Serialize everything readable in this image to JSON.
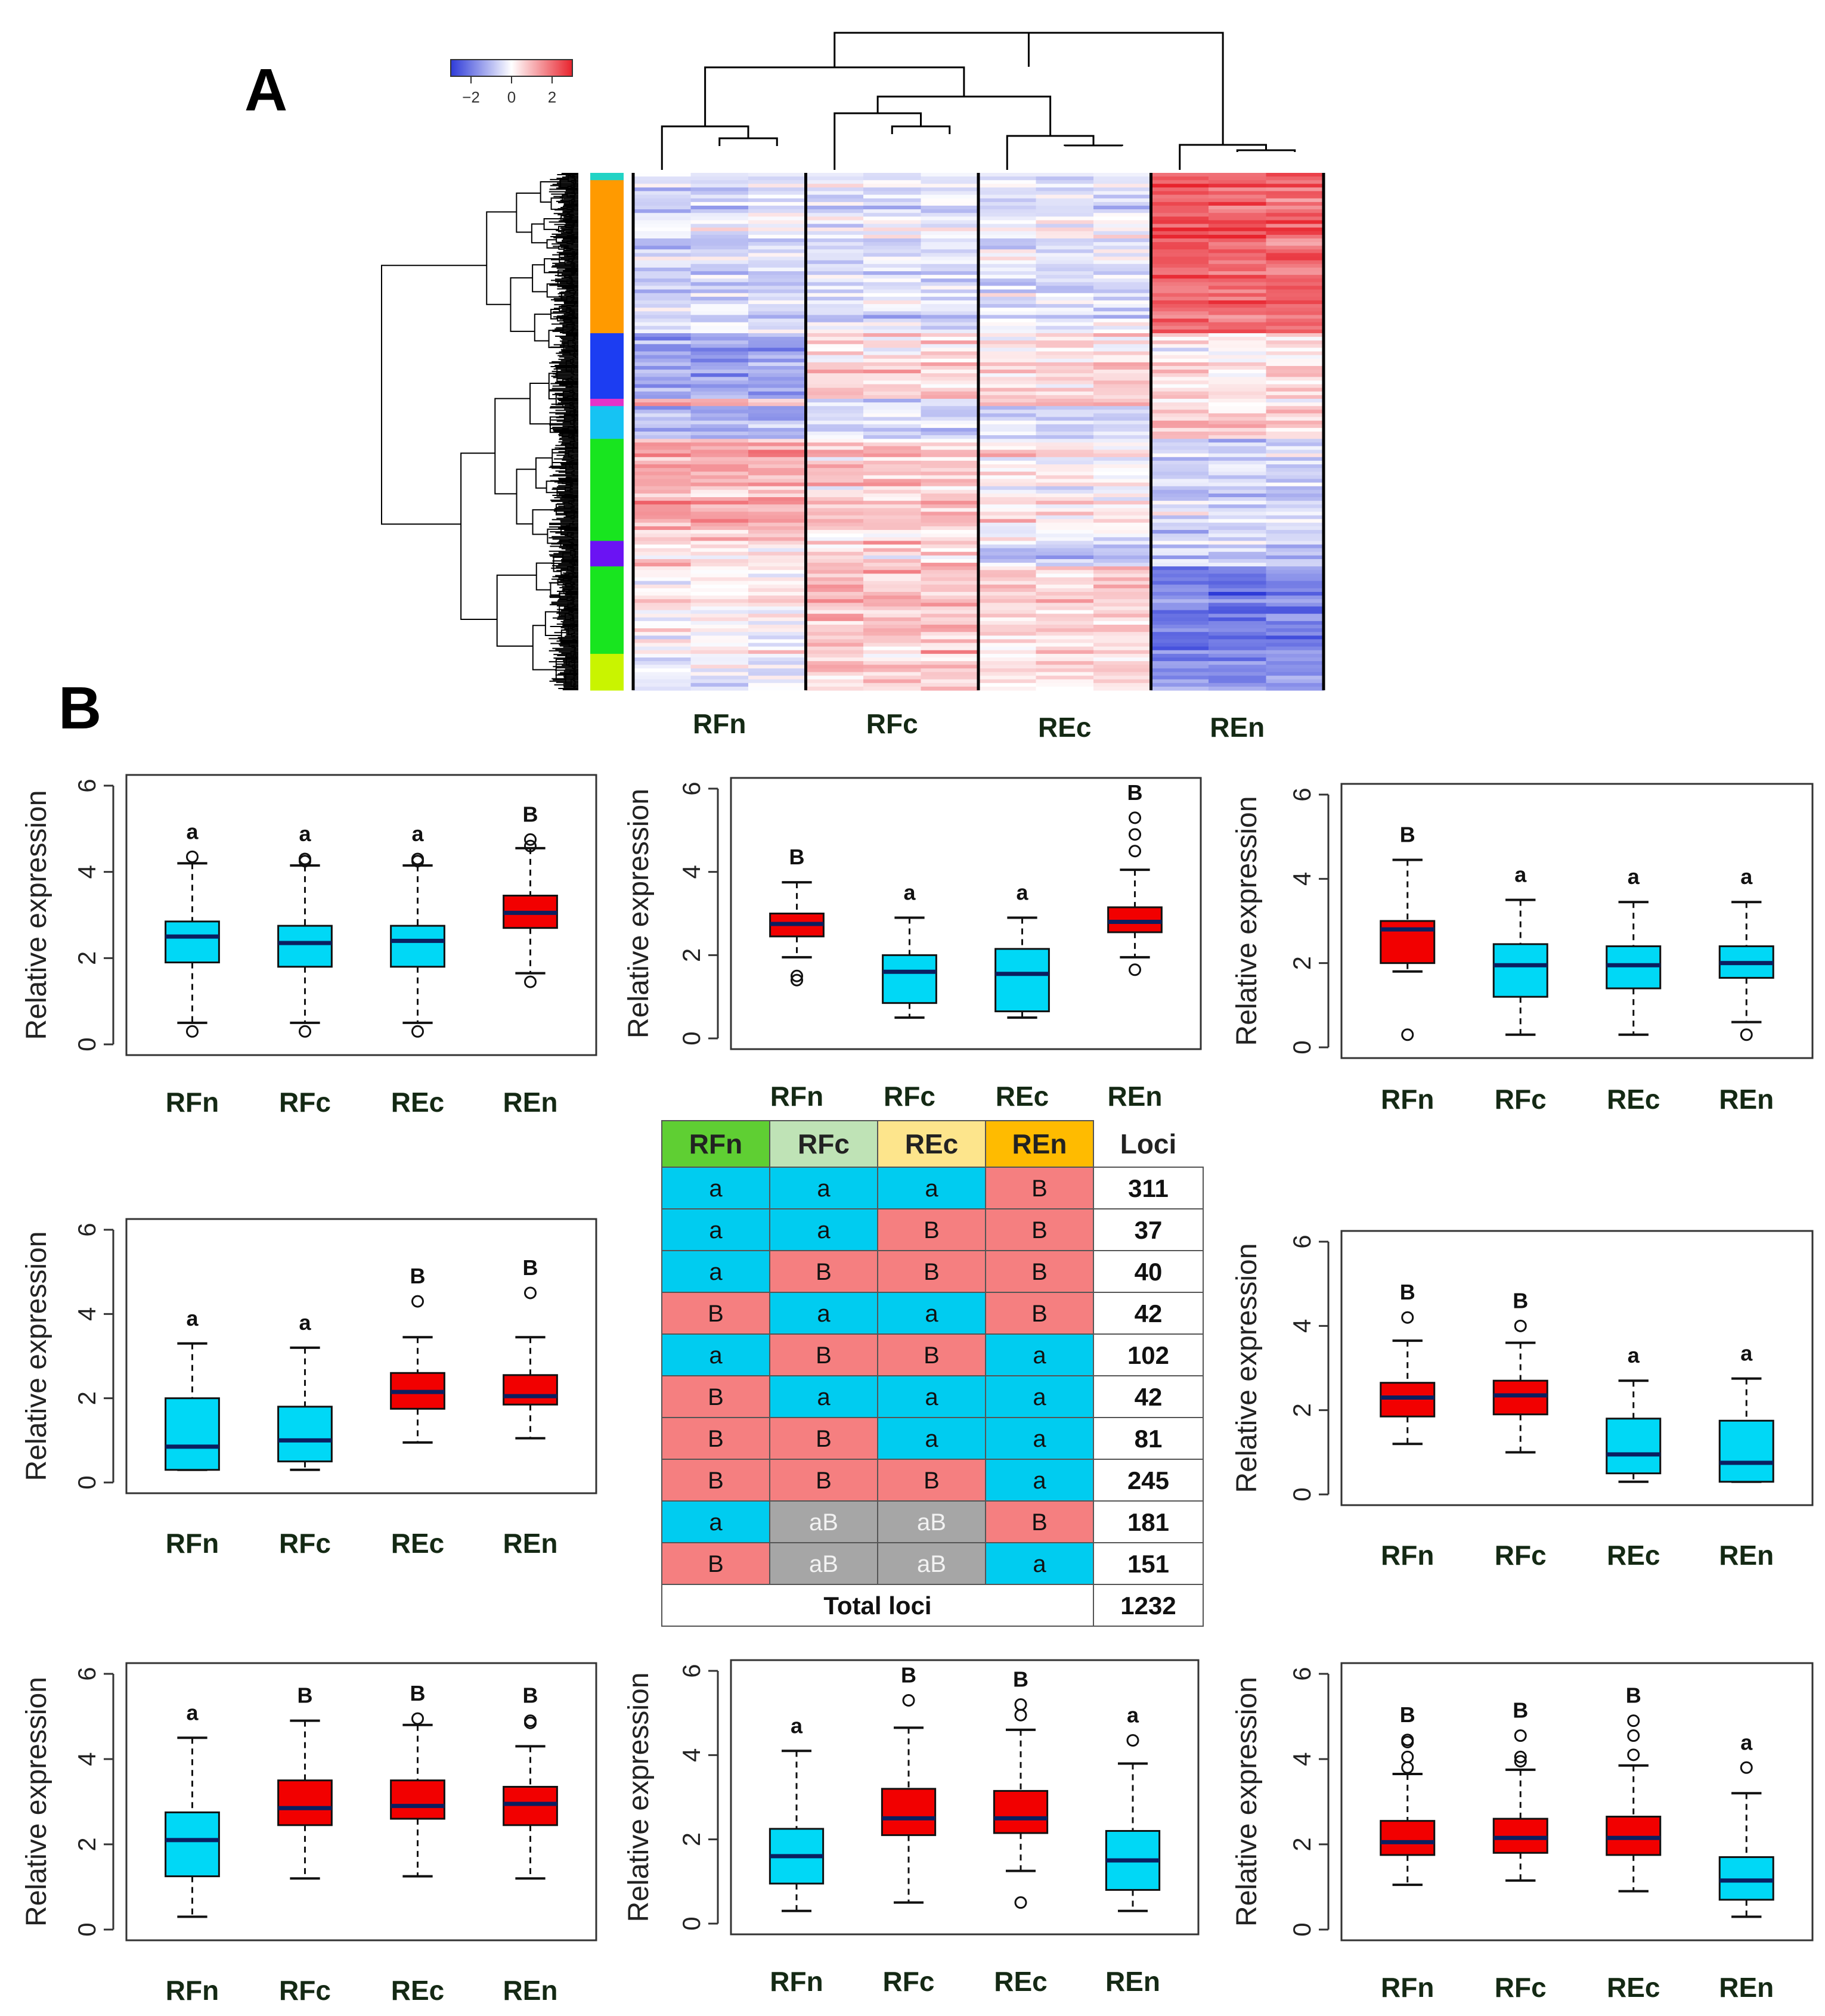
{
  "chart_data": [
    {
      "type": "heatmap",
      "panel": "A",
      "legend": {
        "ticks": [
          "−2",
          "0",
          "2"
        ],
        "range": [
          -3,
          3
        ],
        "colors": [
          "#2e3bd8",
          "#ffffff",
          "#e8232d"
        ]
      },
      "column_groups": [
        "RFn",
        "RFc",
        "REc",
        "REn"
      ],
      "replicates_per_group": 3,
      "row_clusters": [
        {
          "color": "#22d3c5",
          "rows": 2
        },
        {
          "color": "#ff9a00",
          "rows": 42
        },
        {
          "color": "#1c3df2",
          "rows": 18
        },
        {
          "color": "#e432c9",
          "rows": 2
        },
        {
          "color": "#16c3f3",
          "rows": 9
        },
        {
          "color": "#18e51f",
          "rows": 28
        },
        {
          "color": "#6b13f3",
          "rows": 7
        },
        {
          "color": "#18e51f",
          "rows": 24
        },
        {
          "color": "#c9f400",
          "rows": 10
        }
      ],
      "cluster_mean_pattern": [
        [
          -0.6,
          -0.4,
          -0.4,
          2.1
        ],
        [
          -0.6,
          -0.4,
          -0.4,
          2.1
        ],
        [
          -1.4,
          0.5,
          0.4,
          0.3
        ],
        [
          0.8,
          -0.6,
          0.6,
          0.1
        ],
        [
          -1.2,
          -0.6,
          -0.6,
          0.6
        ],
        [
          1.2,
          0.7,
          0.2,
          -0.6
        ],
        [
          0.3,
          0.5,
          -1.0,
          -0.7
        ],
        [
          0.2,
          0.9,
          0.7,
          -1.9
        ],
        [
          -0.4,
          0.6,
          0.4,
          -1.6
        ]
      ]
    },
    {
      "type": "boxplot",
      "panel": "B",
      "ylabel": "Relative expression",
      "ylim": [
        0,
        6
      ],
      "yticks": [
        "0",
        "2",
        "4",
        "6"
      ],
      "categories": [
        "RFn",
        "RFc",
        "REc",
        "REn"
      ],
      "colors": {
        "a": "#00d8f6",
        "B": "#f20000"
      },
      "plots": [
        {
          "id": "p1",
          "boxes": [
            {
              "min": 0.5,
              "q1": 1.9,
              "median": 2.5,
              "q3": 2.85,
              "max": 4.2,
              "outliers": [
                0.3,
                4.35
              ],
              "sig": "a"
            },
            {
              "min": 0.5,
              "q1": 1.8,
              "median": 2.35,
              "q3": 2.75,
              "max": 4.15,
              "outliers": [
                0.3,
                4.25,
                4.3
              ],
              "sig": "a"
            },
            {
              "min": 0.5,
              "q1": 1.8,
              "median": 2.4,
              "q3": 2.75,
              "max": 4.15,
              "outliers": [
                0.3,
                4.25,
                4.3
              ],
              "sig": "a"
            },
            {
              "min": 1.65,
              "q1": 2.7,
              "median": 3.05,
              "q3": 3.45,
              "max": 4.55,
              "outliers": [
                1.45,
                4.6,
                4.75
              ],
              "sig": "B"
            }
          ]
        },
        {
          "id": "p2",
          "boxes": [
            {
              "min": 1.95,
              "q1": 2.45,
              "median": 2.75,
              "q3": 3.0,
              "max": 3.75,
              "outliers": [
                1.4,
                1.5
              ],
              "sig": "B"
            },
            {
              "min": 0.5,
              "q1": 0.85,
              "median": 1.6,
              "q3": 2.0,
              "max": 2.9,
              "outliers": [],
              "sig": "a"
            },
            {
              "min": 0.5,
              "q1": 0.65,
              "median": 1.55,
              "q3": 2.15,
              "max": 2.9,
              "outliers": [],
              "sig": "a"
            },
            {
              "min": 1.95,
              "q1": 2.55,
              "median": 2.8,
              "q3": 3.15,
              "max": 4.05,
              "outliers": [
                1.65,
                4.5,
                4.9,
                5.3
              ],
              "sig": "B"
            }
          ]
        },
        {
          "id": "p3",
          "boxes": [
            {
              "min": 1.8,
              "q1": 2.0,
              "median": 2.8,
              "q3": 3.0,
              "max": 4.45,
              "outliers": [
                0.3
              ],
              "sig": "B"
            },
            {
              "min": 0.3,
              "q1": 1.2,
              "median": 1.95,
              "q3": 2.45,
              "max": 3.5,
              "outliers": [],
              "sig": "a"
            },
            {
              "min": 0.3,
              "q1": 1.4,
              "median": 1.95,
              "q3": 2.4,
              "max": 3.45,
              "outliers": [],
              "sig": "a"
            },
            {
              "min": 0.6,
              "q1": 1.65,
              "median": 2.0,
              "q3": 2.4,
              "max": 3.45,
              "outliers": [
                0.3
              ],
              "sig": "a"
            }
          ]
        },
        {
          "id": "p4",
          "boxes": [
            {
              "min": 0.3,
              "q1": 0.3,
              "median": 0.85,
              "q3": 2.0,
              "max": 3.3,
              "outliers": [],
              "sig": "a"
            },
            {
              "min": 0.3,
              "q1": 0.5,
              "median": 1.0,
              "q3": 1.8,
              "max": 3.2,
              "outliers": [],
              "sig": "a"
            },
            {
              "min": 0.95,
              "q1": 1.75,
              "median": 2.15,
              "q3": 2.6,
              "max": 3.45,
              "outliers": [
                4.3
              ],
              "sig": "B"
            },
            {
              "min": 1.05,
              "q1": 1.85,
              "median": 2.05,
              "q3": 2.55,
              "max": 3.45,
              "outliers": [
                4.5
              ],
              "sig": "B"
            }
          ]
        },
        {
          "id": "p5",
          "boxes": [
            {
              "min": 1.2,
              "q1": 1.85,
              "median": 2.3,
              "q3": 2.65,
              "max": 3.65,
              "outliers": [
                4.2
              ],
              "sig": "B"
            },
            {
              "min": 1.0,
              "q1": 1.9,
              "median": 2.35,
              "q3": 2.7,
              "max": 3.6,
              "outliers": [
                4.0
              ],
              "sig": "B"
            },
            {
              "min": 0.3,
              "q1": 0.5,
              "median": 0.95,
              "q3": 1.8,
              "max": 2.7,
              "outliers": [],
              "sig": "a"
            },
            {
              "min": 0.3,
              "q1": 0.3,
              "median": 0.75,
              "q3": 1.75,
              "max": 2.75,
              "outliers": [],
              "sig": "a"
            }
          ]
        },
        {
          "id": "p6",
          "boxes": [
            {
              "min": 0.3,
              "q1": 1.25,
              "median": 2.1,
              "q3": 2.75,
              "max": 4.5,
              "outliers": [],
              "sig": "a"
            },
            {
              "min": 1.2,
              "q1": 2.45,
              "median": 2.85,
              "q3": 3.5,
              "max": 4.9,
              "outliers": [],
              "sig": "B"
            },
            {
              "min": 1.25,
              "q1": 2.6,
              "median": 2.9,
              "q3": 3.5,
              "max": 4.8,
              "outliers": [
                4.95
              ],
              "sig": "B"
            },
            {
              "min": 1.2,
              "q1": 2.45,
              "median": 2.95,
              "q3": 3.35,
              "max": 4.3,
              "outliers": [
                4.85,
                4.9
              ],
              "sig": "B"
            }
          ]
        },
        {
          "id": "p7",
          "boxes": [
            {
              "min": 0.3,
              "q1": 0.95,
              "median": 1.6,
              "q3": 2.25,
              "max": 4.1,
              "outliers": [],
              "sig": "a"
            },
            {
              "min": 0.5,
              "q1": 2.1,
              "median": 2.5,
              "q3": 3.2,
              "max": 4.65,
              "outliers": [
                5.3
              ],
              "sig": "B"
            },
            {
              "min": 1.25,
              "q1": 2.15,
              "median": 2.5,
              "q3": 3.15,
              "max": 4.6,
              "outliers": [
                0.5,
                4.95,
                5.2
              ],
              "sig": "B"
            },
            {
              "min": 0.3,
              "q1": 0.8,
              "median": 1.5,
              "q3": 2.2,
              "max": 3.8,
              "outliers": [
                4.35
              ],
              "sig": "a"
            }
          ]
        },
        {
          "id": "p8",
          "boxes": [
            {
              "min": 1.05,
              "q1": 1.75,
              "median": 2.05,
              "q3": 2.55,
              "max": 3.65,
              "outliers": [
                3.8,
                4.05,
                4.4,
                4.45
              ],
              "sig": "B"
            },
            {
              "min": 1.15,
              "q1": 1.8,
              "median": 2.15,
              "q3": 2.6,
              "max": 3.75,
              "outliers": [
                3.95,
                4.05,
                4.55
              ],
              "sig": "B"
            },
            {
              "min": 0.9,
              "q1": 1.75,
              "median": 2.15,
              "q3": 2.65,
              "max": 3.85,
              "outliers": [
                4.1,
                4.55,
                4.9
              ],
              "sig": "B"
            },
            {
              "min": 0.3,
              "q1": 0.7,
              "median": 1.15,
              "q3": 1.7,
              "max": 3.2,
              "outliers": [
                3.8
              ],
              "sig": "a"
            }
          ]
        }
      ]
    },
    {
      "type": "table",
      "panel": "B",
      "columns": [
        "RFn",
        "RFc",
        "REc",
        "REn",
        "Loci"
      ],
      "header_colors": [
        "#5fcf33",
        "#bfe3b6",
        "#fde58c",
        "#ffbb00"
      ],
      "rows": [
        {
          "sig": [
            "a",
            "a",
            "a",
            "B"
          ],
          "loci": "311"
        },
        {
          "sig": [
            "a",
            "a",
            "B",
            "B"
          ],
          "loci": "37"
        },
        {
          "sig": [
            "a",
            "B",
            "B",
            "B"
          ],
          "loci": "40"
        },
        {
          "sig": [
            "B",
            "a",
            "a",
            "B"
          ],
          "loci": "42"
        },
        {
          "sig": [
            "a",
            "B",
            "B",
            "a"
          ],
          "loci": "102"
        },
        {
          "sig": [
            "B",
            "a",
            "a",
            "a"
          ],
          "loci": "42"
        },
        {
          "sig": [
            "B",
            "B",
            "a",
            "a"
          ],
          "loci": "81"
        },
        {
          "sig": [
            "B",
            "B",
            "B",
            "a"
          ],
          "loci": "245"
        },
        {
          "sig": [
            "a",
            "aB",
            "aB",
            "B"
          ],
          "loci": "181"
        },
        {
          "sig": [
            "B",
            "aB",
            "aB",
            "a"
          ],
          "loci": "151"
        }
      ],
      "total_label": "Total loci",
      "total_value": "1232",
      "cell_colors": {
        "a": "#00ccf0",
        "B": "#f57f80",
        "aB": "#a6a6a6"
      }
    }
  ],
  "labels": {
    "panel_a": "A",
    "panel_b": "B"
  }
}
